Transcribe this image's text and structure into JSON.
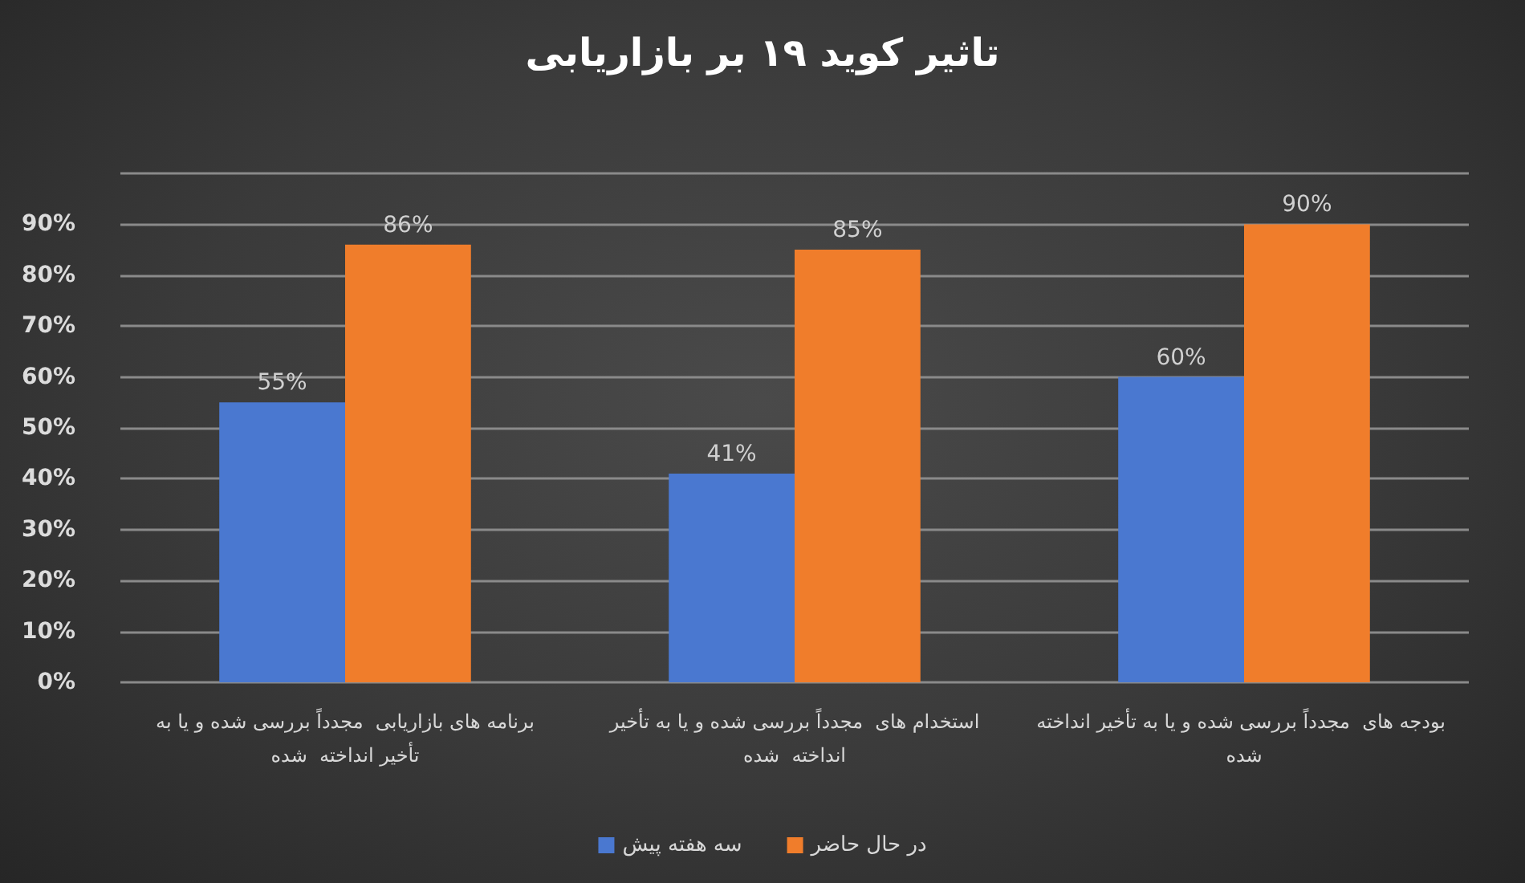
{
  "chart_data": {
    "type": "bar",
    "title": "تاثیر کوید ۱۹ بر بازاریابی",
    "categories": [
      "برنامه های بازاریابی  مجدداً بررسی شده و یا به تأخیر انداخته  شده",
      "استخدام های  مجدداً بررسی شده و یا به تأخیر انداخته  شده",
      "بودجه های  مجدداً بررسی شده و یا به تأخیر انداخته  شده"
    ],
    "series": [
      {
        "name": "سه هفته پیش",
        "color": "#4a78d0",
        "values": [
          55,
          41,
          60
        ],
        "value_labels": [
          "55%",
          "41%",
          "60%"
        ]
      },
      {
        "name": "در حال حاضر",
        "color": "#f07d2b",
        "values": [
          86,
          85,
          90
        ],
        "value_labels": [
          "86%",
          "85%",
          "90%"
        ]
      }
    ],
    "ylim": [
      0,
      100
    ],
    "yticks": [
      {
        "value": 0,
        "label": "0%"
      },
      {
        "value": 10,
        "label": "10%"
      },
      {
        "value": 20,
        "label": "20%"
      },
      {
        "value": 30,
        "label": "30%"
      },
      {
        "value": 40,
        "label": "40%"
      },
      {
        "value": 50,
        "label": "50%"
      },
      {
        "value": 60,
        "label": "60%"
      },
      {
        "value": 70,
        "label": "70%"
      },
      {
        "value": 80,
        "label": "80%"
      },
      {
        "value": 90,
        "label": "90%"
      },
      {
        "value": 100,
        "label": null
      }
    ],
    "grid": "y",
    "legend": "bottom"
  }
}
